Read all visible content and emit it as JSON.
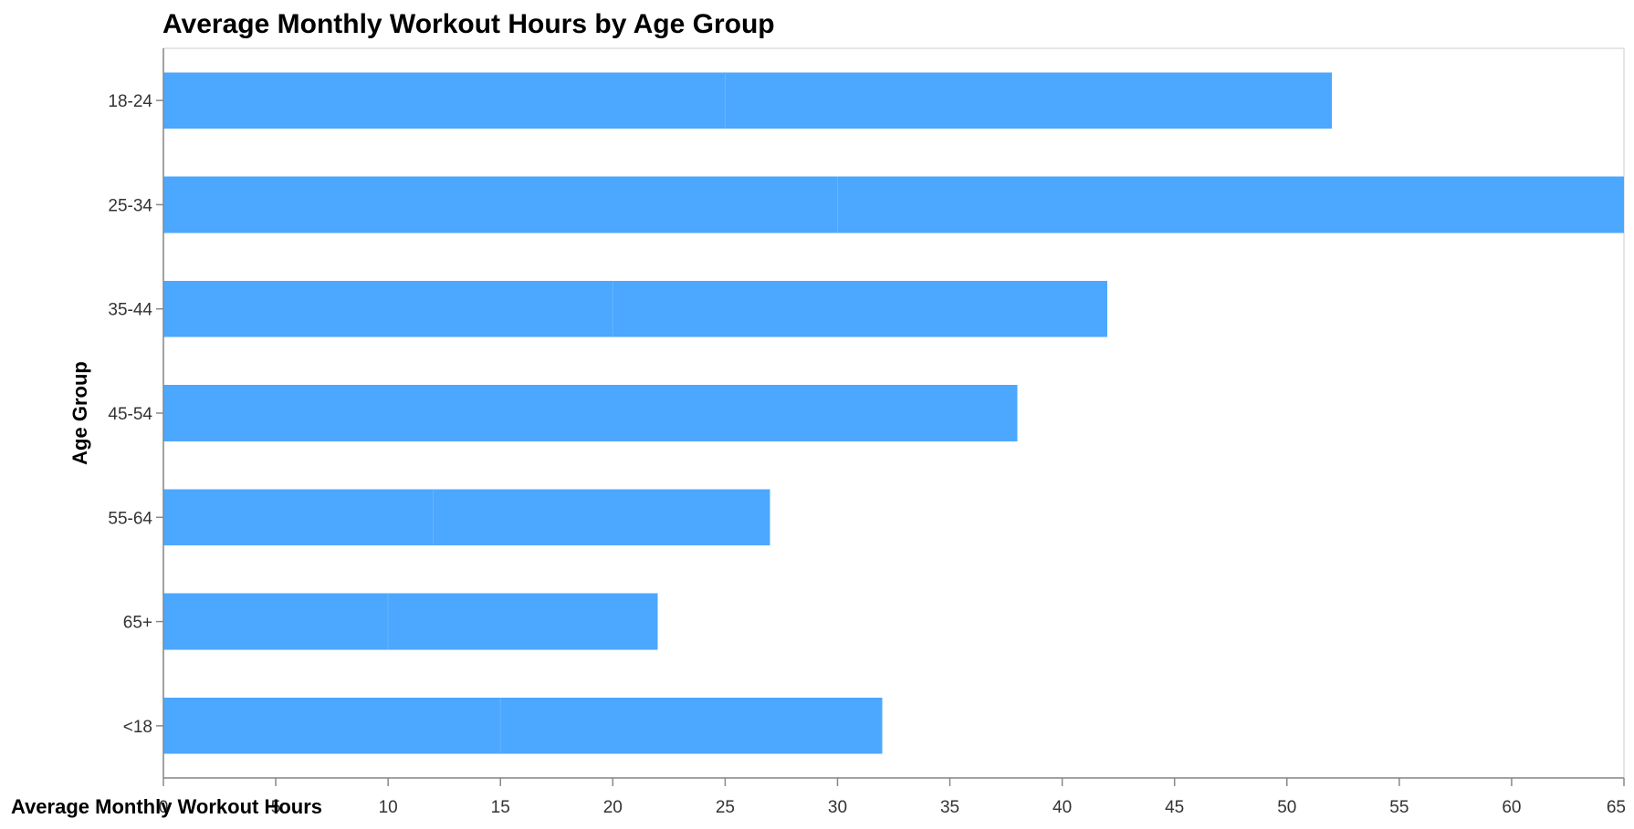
{
  "chart_data": {
    "type": "bar",
    "orientation": "horizontal",
    "stacked": true,
    "title": "Average Monthly Workout Hours by Age Group",
    "xlabel": "Average Monthly Workout Hours",
    "ylabel": "Age Group",
    "xlim": [
      0,
      65
    ],
    "x_ticks": [
      0,
      5,
      10,
      15,
      20,
      25,
      30,
      35,
      40,
      45,
      50,
      55,
      60,
      65
    ],
    "categories": [
      "18-24",
      "25-34",
      "35-44",
      "45-54",
      "55-64",
      "65+",
      "<18"
    ],
    "segments": [
      [
        25,
        27
      ],
      [
        30,
        35
      ],
      [
        20,
        22
      ],
      [
        38
      ],
      [
        12,
        15
      ],
      [
        10,
        12
      ],
      [
        15,
        17
      ]
    ],
    "totals": [
      52,
      65,
      42,
      38,
      27,
      22,
      32
    ],
    "bar_color": "#4ca7fe",
    "segment_divider_color": "#66b5fe",
    "grid": false,
    "legend": "none"
  }
}
